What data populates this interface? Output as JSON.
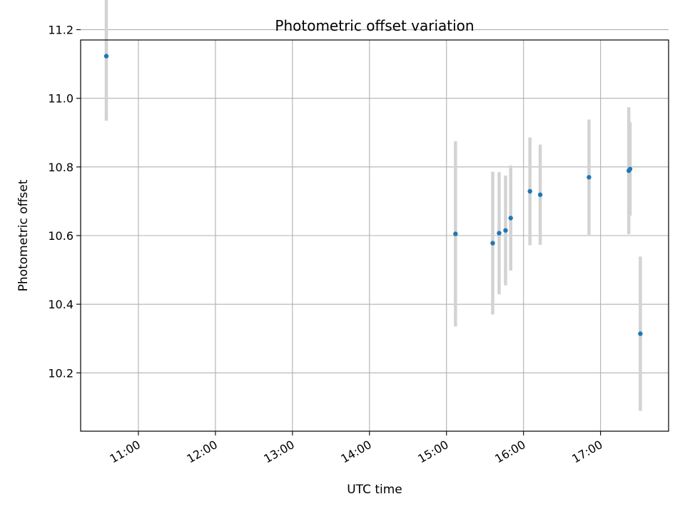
{
  "chart_data": {
    "type": "scatter",
    "title": "Photometric offset variation",
    "xlabel": "UTC time",
    "ylabel": "Photometric offset",
    "x_ticks": [
      "11:00",
      "12:00",
      "13:00",
      "14:00",
      "15:00",
      "16:00",
      "17:00"
    ],
    "y_ticks": [
      "10.2",
      "10.4",
      "10.6",
      "10.8",
      "11.0",
      "11.2"
    ],
    "xlim": [
      "10:15",
      "17:53"
    ],
    "ylim": [
      10.03,
      11.17
    ],
    "grid": true,
    "marker_color": "#1f77b4",
    "errorbar_color": "#d3d3d3",
    "points": [
      {
        "time": "10:35",
        "y": 11.123,
        "err": 0.188
      },
      {
        "time": "15:07",
        "y": 10.605,
        "err": 0.27
      },
      {
        "time": "15:36",
        "y": 10.578,
        "err": 0.208
      },
      {
        "time": "15:41",
        "y": 10.607,
        "err": 0.178
      },
      {
        "time": "15:46",
        "y": 10.615,
        "err": 0.16
      },
      {
        "time": "15:50",
        "y": 10.651,
        "err": 0.153
      },
      {
        "time": "16:05",
        "y": 10.729,
        "err": 0.157
      },
      {
        "time": "16:13",
        "y": 10.719,
        "err": 0.146
      },
      {
        "time": "16:51",
        "y": 10.77,
        "err": 0.168
      },
      {
        "time": "17:22",
        "y": 10.789,
        "err": 0.185
      },
      {
        "time": "17:23",
        "y": 10.794,
        "err": 0.136
      },
      {
        "time": "17:31",
        "y": 10.314,
        "err": 0.225
      }
    ]
  }
}
